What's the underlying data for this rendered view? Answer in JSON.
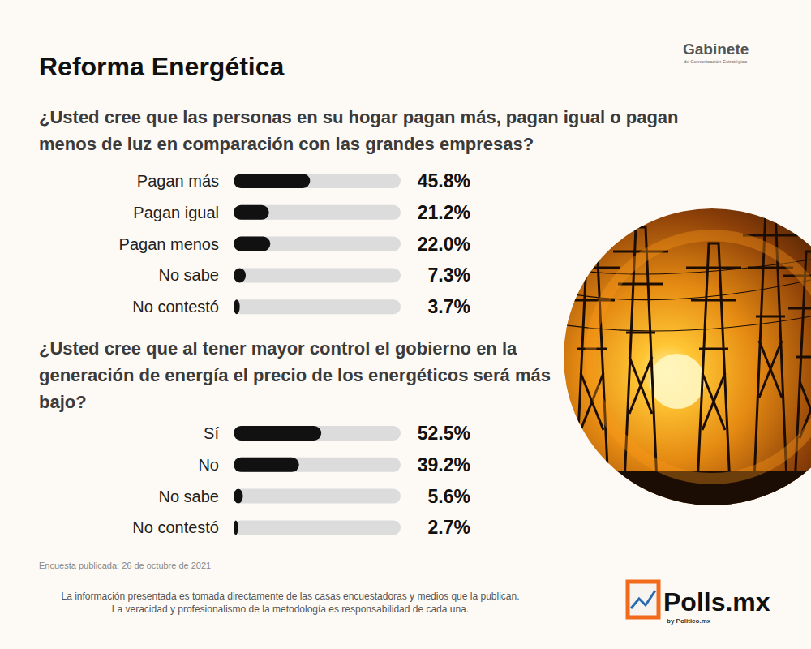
{
  "page": {
    "title": "Reforma Energética",
    "brand": "Gabinete",
    "brand_subtitle": "de Comunicación Estratégica",
    "published": "Encuesta publicada: 26 de octubre de 2021",
    "disclaimer": [
      "La información presentada es tomada directamente de las casas encuestadoras y medios que la publican.",
      "La veracidad y profesionalismo de la metodología es responsabilidad de cada una."
    ],
    "logo": "Polls.mx",
    "logo_subtitle": "by Politico.mx"
  },
  "chart_data": [
    {
      "type": "bar",
      "title": "¿Usted cree que las personas en su hogar pagan más, pagan igual o pagan menos de luz en comparación con las grandes empresas?",
      "orientation": "horizontal",
      "categories": [
        "Pagan más",
        "Pagan igual",
        "Pagan menos",
        "No sabe",
        "No contestó"
      ],
      "values": [
        45.8,
        21.2,
        22.0,
        7.3,
        3.7
      ],
      "value_labels": [
        "45.8%",
        "21.2%",
        "22.0%",
        "7.3%",
        "3.7%"
      ],
      "color": "#111111",
      "xlim": [
        0,
        100
      ],
      "data_labels": true,
      "tick_labels": "y",
      "grid": false
    },
    {
      "type": "bar",
      "title": "¿Usted cree que al tener mayor control el gobierno en la generación de energía el precio de los energéticos será más bajo?",
      "orientation": "horizontal",
      "categories": [
        "Sí",
        "No",
        "No sabe",
        "No contestó"
      ],
      "values": [
        52.5,
        39.2,
        5.6,
        2.7
      ],
      "value_labels": [
        "52.5%",
        "39.2%",
        "5.6%",
        "2.7%"
      ],
      "color": "#111111",
      "xlim": [
        0,
        100
      ],
      "data_labels": true,
      "tick_labels": "y",
      "grid": false
    }
  ]
}
